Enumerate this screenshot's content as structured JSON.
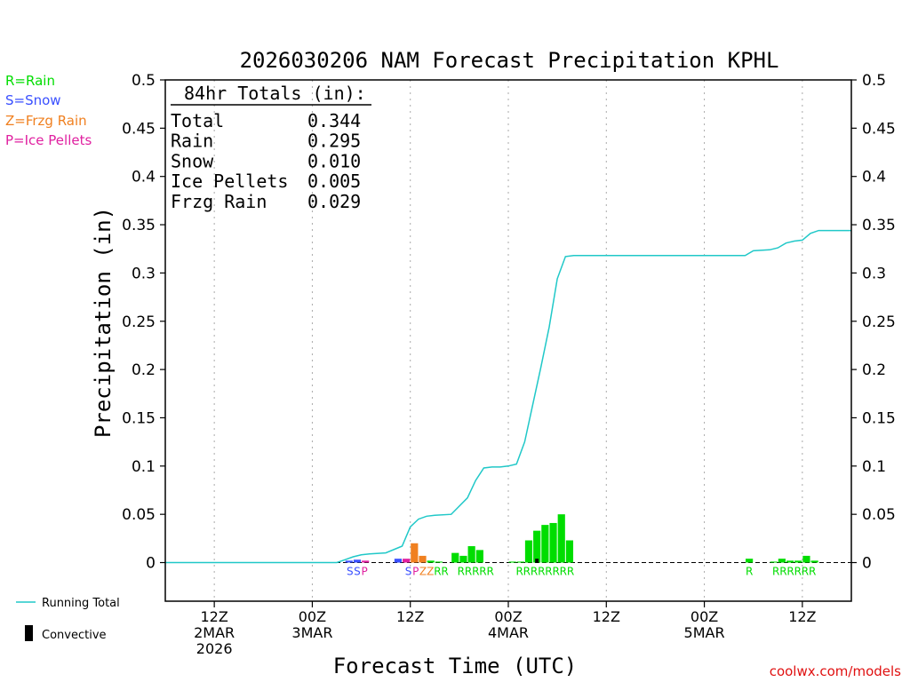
{
  "chart_data": {
    "type": "bar",
    "title": "2026030206 NAM Forecast Precipitation KPHL",
    "ylabel": "Precipitation (in)",
    "xlabel": "Forecast Time (UTC)",
    "ylim": [
      -0.04,
      0.5
    ],
    "xlim": [
      0,
      84
    ],
    "y_ticks": [
      0,
      0.05,
      0.1,
      0.15,
      0.2,
      0.25,
      0.3,
      0.35,
      0.4,
      0.45,
      0.5
    ],
    "y_tick_labels": [
      "0",
      "0.05",
      "0.1",
      "0.15",
      "0.2",
      "0.25",
      "0.3",
      "0.35",
      "0.4",
      "0.45",
      "0.5"
    ],
    "x_ticks": [
      {
        "hour": 6,
        "lines": [
          "12Z",
          "2MAR",
          "2026"
        ]
      },
      {
        "hour": 18,
        "lines": [
          "00Z",
          "3MAR"
        ]
      },
      {
        "hour": 30,
        "lines": [
          "12Z"
        ]
      },
      {
        "hour": 42,
        "lines": [
          "00Z",
          "4MAR"
        ]
      },
      {
        "hour": 54,
        "lines": [
          "12Z"
        ]
      },
      {
        "hour": 66,
        "lines": [
          "00Z",
          "5MAR"
        ]
      },
      {
        "hour": 78,
        "lines": [
          "12Z"
        ]
      }
    ],
    "legend": [
      {
        "code": "R",
        "label": "R=Rain",
        "color": "#00dd00"
      },
      {
        "code": "S",
        "label": "S=Snow",
        "color": "#3a50ff"
      },
      {
        "code": "Z",
        "label": "Z=Frzg Rain",
        "color": "#f08020"
      },
      {
        "code": "P",
        "label": "P=Ice Pellets",
        "color": "#e020a0"
      }
    ],
    "bottom_legend": {
      "running_total": "Running Total",
      "convective": "Convective"
    },
    "series": [
      {
        "name": "Hourly Precipitation",
        "bars": [
          {
            "hour": 22.5,
            "type": "S",
            "value": 0.002
          },
          {
            "hour": 23.5,
            "type": "S",
            "value": 0.003
          },
          {
            "hour": 24.5,
            "type": "P",
            "value": 0.002
          },
          {
            "hour": 28.5,
            "type": "S",
            "value": 0.004
          },
          {
            "hour": 29.5,
            "type": "P",
            "value": 0.004
          },
          {
            "hour": 30.5,
            "type": "Z",
            "value": 0.02
          },
          {
            "hour": 31.5,
            "type": "Z",
            "value": 0.007
          },
          {
            "hour": 32.5,
            "type": "R",
            "value": 0.002
          },
          {
            "hour": 33.5,
            "type": "R",
            "value": 0.001
          },
          {
            "hour": 35.5,
            "type": "R",
            "value": 0.01
          },
          {
            "hour": 36.5,
            "type": "R",
            "value": 0.007
          },
          {
            "hour": 37.5,
            "type": "R",
            "value": 0.017
          },
          {
            "hour": 38.5,
            "type": "R",
            "value": 0.013
          },
          {
            "hour": 42.5,
            "type": "R",
            "value": 0.001
          },
          {
            "hour": 43.5,
            "type": "R",
            "value": 0.001
          },
          {
            "hour": 44.5,
            "type": "R",
            "value": 0.023
          },
          {
            "hour": 45.5,
            "type": "R",
            "value": 0.033
          },
          {
            "hour": 46.5,
            "type": "R",
            "value": 0.039
          },
          {
            "hour": 47.5,
            "type": "R",
            "value": 0.041
          },
          {
            "hour": 48.5,
            "type": "R",
            "value": 0.05
          },
          {
            "hour": 49.5,
            "type": "R",
            "value": 0.023
          },
          {
            "hour": 71.5,
            "type": "R",
            "value": 0.004
          },
          {
            "hour": 74.5,
            "type": "R",
            "value": 0.001
          },
          {
            "hour": 75.5,
            "type": "R",
            "value": 0.004
          },
          {
            "hour": 76.5,
            "type": "R",
            "value": 0.002
          },
          {
            "hour": 77.5,
            "type": "R",
            "value": 0.002
          },
          {
            "hour": 78.5,
            "type": "R",
            "value": 0.007
          },
          {
            "hour": 79.5,
            "type": "R",
            "value": 0.002
          }
        ],
        "convective": [
          {
            "hour": 45.5,
            "value": 0.004
          }
        ]
      },
      {
        "name": "Running Total",
        "color": "#20c8c8",
        "points": [
          [
            0,
            0
          ],
          [
            21,
            0
          ],
          [
            22,
            0.003
          ],
          [
            23,
            0.006
          ],
          [
            24,
            0.008
          ],
          [
            25,
            0.009
          ],
          [
            27,
            0.01
          ],
          [
            29,
            0.017
          ],
          [
            30,
            0.037
          ],
          [
            31,
            0.045
          ],
          [
            32,
            0.048
          ],
          [
            33,
            0.049
          ],
          [
            35,
            0.05
          ],
          [
            37,
            0.067
          ],
          [
            38,
            0.085
          ],
          [
            39,
            0.098
          ],
          [
            40,
            0.099
          ],
          [
            41,
            0.099
          ],
          [
            42,
            0.1
          ],
          [
            43,
            0.102
          ],
          [
            44,
            0.125
          ],
          [
            45,
            0.164
          ],
          [
            46,
            0.203
          ],
          [
            47,
            0.244
          ],
          [
            48,
            0.294
          ],
          [
            49,
            0.317
          ],
          [
            50,
            0.318
          ],
          [
            61,
            0.318
          ],
          [
            71,
            0.318
          ],
          [
            72,
            0.323
          ],
          [
            74,
            0.324
          ],
          [
            75,
            0.326
          ],
          [
            76,
            0.331
          ],
          [
            77,
            0.333
          ],
          [
            78,
            0.334
          ],
          [
            79,
            0.341
          ],
          [
            80,
            0.344
          ],
          [
            84,
            0.344
          ]
        ]
      }
    ],
    "letter_groups": [
      {
        "center_hour": 23.5,
        "chars": [
          {
            "c": "S",
            "t": "S"
          },
          {
            "c": "S",
            "t": "S"
          },
          {
            "c": "P",
            "t": "P"
          }
        ]
      },
      {
        "center_hour": 32.0,
        "chars": [
          {
            "c": "S",
            "t": "S"
          },
          {
            "c": "P",
            "t": "P"
          },
          {
            "c": "Z",
            "t": "Z"
          },
          {
            "c": "Z",
            "t": "Z"
          },
          {
            "c": "R",
            "t": "R"
          },
          {
            "c": "R",
            "t": "R"
          }
        ]
      },
      {
        "center_hour": 38.0,
        "chars": [
          {
            "c": "R",
            "t": "R"
          },
          {
            "c": "R",
            "t": "R"
          },
          {
            "c": "R",
            "t": "R"
          },
          {
            "c": "R",
            "t": "R"
          },
          {
            "c": "R",
            "t": "R"
          }
        ]
      },
      {
        "center_hour": 46.5,
        "chars": [
          {
            "c": "R",
            "t": "R"
          },
          {
            "c": "R",
            "t": "R"
          },
          {
            "c": "R",
            "t": "R"
          },
          {
            "c": "R",
            "t": "R"
          },
          {
            "c": "R",
            "t": "R"
          },
          {
            "c": "R",
            "t": "R"
          },
          {
            "c": "R",
            "t": "R"
          },
          {
            "c": "R",
            "t": "R"
          }
        ]
      },
      {
        "center_hour": 71.5,
        "chars": [
          {
            "c": "R",
            "t": "R"
          }
        ]
      },
      {
        "center_hour": 77.0,
        "chars": [
          {
            "c": "R",
            "t": "R"
          },
          {
            "c": "R",
            "t": "R"
          },
          {
            "c": "R",
            "t": "R"
          },
          {
            "c": "R",
            "t": "R"
          },
          {
            "c": "R",
            "t": "R"
          },
          {
            "c": "R",
            "t": "R"
          }
        ]
      }
    ],
    "totals": {
      "heading": "84hr Totals (in):",
      "rows": [
        {
          "label": "Total",
          "value": "0.344"
        },
        {
          "label": "Rain",
          "value": "0.295"
        },
        {
          "label": "Snow",
          "value": "0.010"
        },
        {
          "label": "Ice Pellets",
          "value": "0.005"
        },
        {
          "label": "Frzg Rain",
          "value": "0.029"
        }
      ]
    },
    "credit": "coolwx.com/models"
  }
}
